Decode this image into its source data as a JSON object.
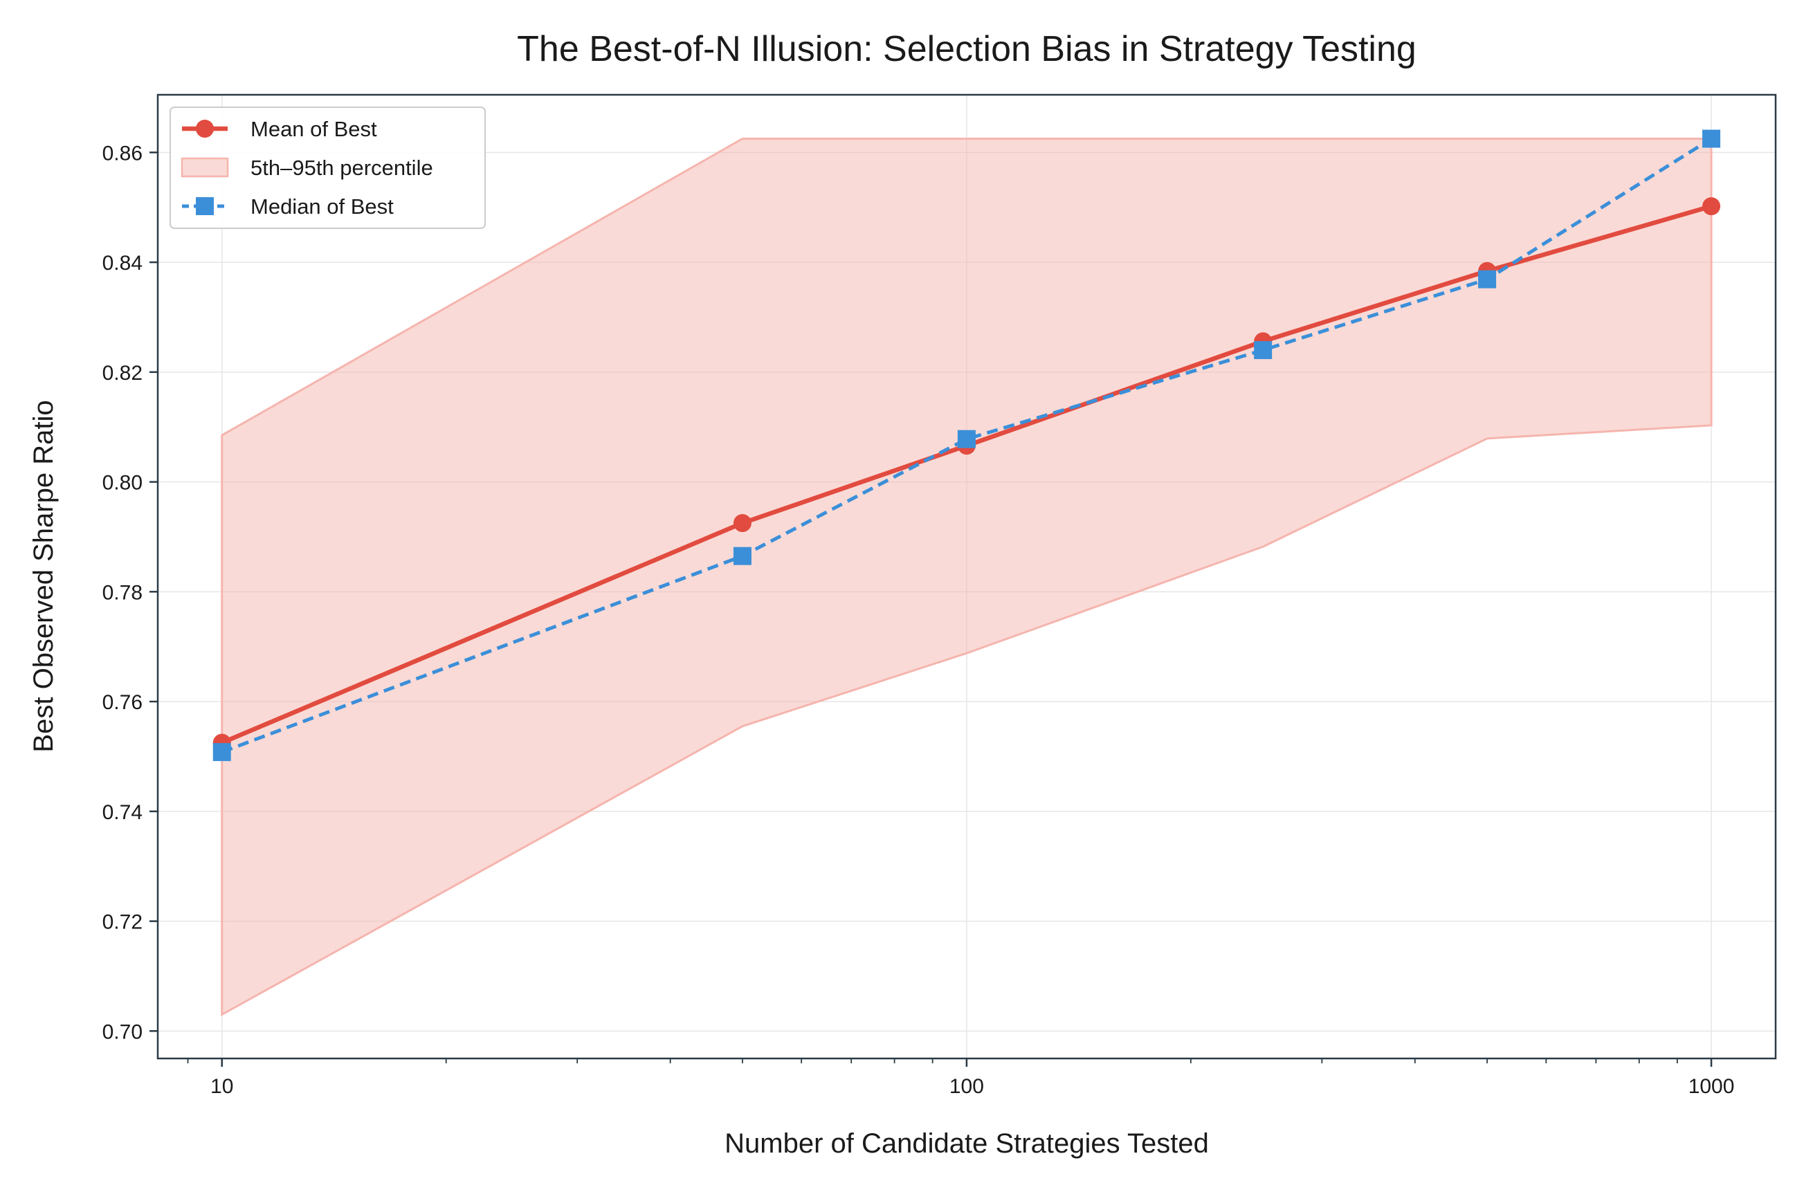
{
  "chart_data": {
    "type": "line",
    "title": "The Best-of-N Illusion: Selection Bias in Strategy Testing",
    "xlabel": "Number of Candidate Strategies Tested",
    "ylabel": "Best Observed Sharpe Ratio",
    "xscale": "log",
    "xlim": [
      8.2,
      1220
    ],
    "ylim": [
      0.695,
      0.8705
    ],
    "x": [
      10,
      50,
      100,
      250,
      500,
      1000
    ],
    "x_ticks": [
      10,
      100,
      1000
    ],
    "x_tick_labels": [
      "10",
      "100",
      "1000"
    ],
    "y_ticks": [
      0.7,
      0.72,
      0.74,
      0.76,
      0.78,
      0.8,
      0.82,
      0.84,
      0.86
    ],
    "y_tick_labels": [
      "0.70",
      "0.72",
      "0.74",
      "0.76",
      "0.78",
      "0.80",
      "0.82",
      "0.84",
      "0.86"
    ],
    "grid": true,
    "legend_position": "top-left",
    "series": [
      {
        "name": "Mean of Best",
        "kind": "line",
        "marker": "circle",
        "line_style": "solid",
        "color": "#e24b3f",
        "values": [
          0.7525,
          0.7925,
          0.8066,
          0.8256,
          0.8384,
          0.8502
        ]
      },
      {
        "name": "5th–95th percentile",
        "kind": "band",
        "color": "#f5b5ae",
        "lower": [
          0.703,
          0.7555,
          0.7688,
          0.7882,
          0.8079,
          0.8103
        ],
        "upper": [
          0.8085,
          0.8625,
          0.8625,
          0.8625,
          0.8625,
          0.8625
        ]
      },
      {
        "name": "Median of Best",
        "kind": "line",
        "marker": "square",
        "line_style": "dashed",
        "color": "#3b8fd9",
        "values": [
          0.7508,
          0.7865,
          0.8078,
          0.824,
          0.8369,
          0.8625
        ]
      }
    ]
  }
}
